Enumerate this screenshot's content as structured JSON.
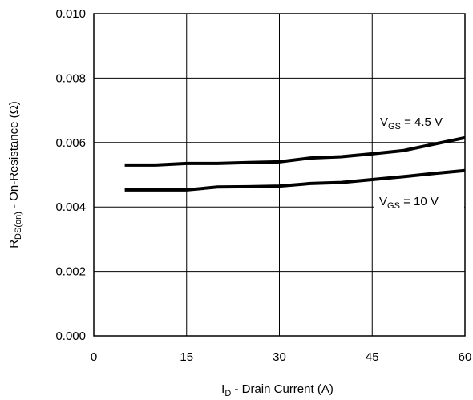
{
  "chart_data": {
    "type": "line",
    "xlabel": {
      "main": "I",
      "sub": "D",
      "rest": " - Drain Current (A)"
    },
    "ylabel": {
      "main": "R",
      "sub": "DS(on)",
      "rest": " - On-Resistance (Ω)"
    },
    "xlim": [
      0,
      60
    ],
    "ylim": [
      0,
      0.01
    ],
    "x_ticks": [
      "0",
      "15",
      "30",
      "45",
      "60"
    ],
    "y_ticks": [
      "0.000",
      "0.002",
      "0.004",
      "0.006",
      "0.008",
      "0.010"
    ],
    "grid": true,
    "series": [
      {
        "name": "V_GS = 4.5 V",
        "label": {
          "main": "V",
          "sub": "GS",
          "rest": " = 4.5 V"
        },
        "x": [
          5,
          10,
          15,
          20,
          25,
          30,
          35,
          40,
          45,
          50,
          55,
          60
        ],
        "y": [
          0.0053,
          0.0053,
          0.00535,
          0.00535,
          0.00538,
          0.0054,
          0.00552,
          0.00556,
          0.00565,
          0.00575,
          0.00595,
          0.00615
        ]
      },
      {
        "name": "V_GS = 10 V",
        "label": {
          "main": "V",
          "sub": "GS",
          "rest": " = 10 V"
        },
        "x": [
          5,
          10,
          15,
          20,
          25,
          30,
          35,
          40,
          45,
          50,
          55,
          60
        ],
        "y": [
          0.00453,
          0.00453,
          0.00453,
          0.00462,
          0.00463,
          0.00465,
          0.00473,
          0.00476,
          0.00485,
          0.00494,
          0.00504,
          0.00513
        ]
      }
    ]
  }
}
